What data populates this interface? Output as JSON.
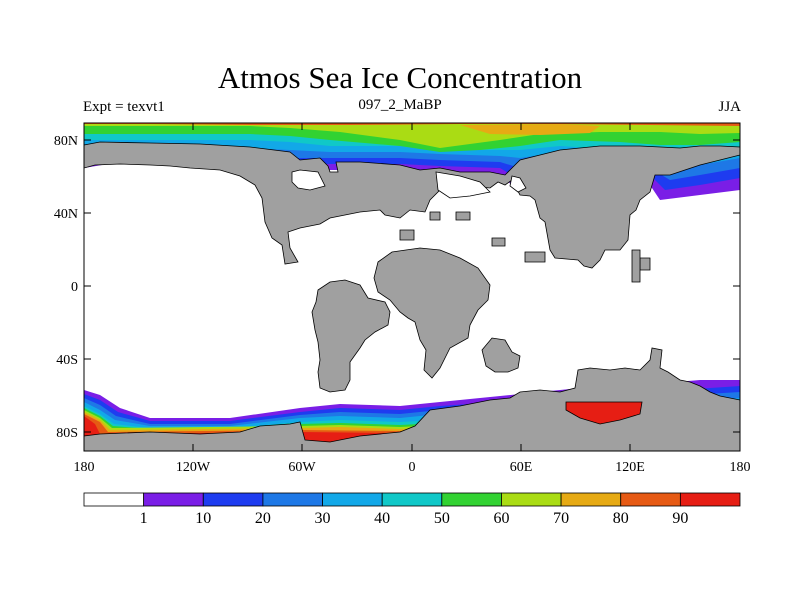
{
  "title": "Atmos Sea Ice Concentration",
  "subtitle_left": "Expt = texvt1",
  "subtitle_center": "097_2_MaBP",
  "subtitle_right": "JJA",
  "x_ticks": [
    "180",
    "120W",
    "60W",
    "0",
    "60E",
    "120E",
    "180"
  ],
  "y_ticks": [
    "80N",
    "40N",
    "0",
    "40S",
    "80S"
  ],
  "colorbar": {
    "labels": [
      "1",
      "10",
      "20",
      "30",
      "40",
      "50",
      "60",
      "70",
      "80",
      "90"
    ],
    "colors": [
      "#ffffff",
      "#7a1ee6",
      "#1e3cf0",
      "#1e78e6",
      "#12a8e8",
      "#10c8c8",
      "#32d232",
      "#aadc14",
      "#e6aa14",
      "#e65a14",
      "#e61e14"
    ]
  },
  "land_color": "#a0a0a0"
}
